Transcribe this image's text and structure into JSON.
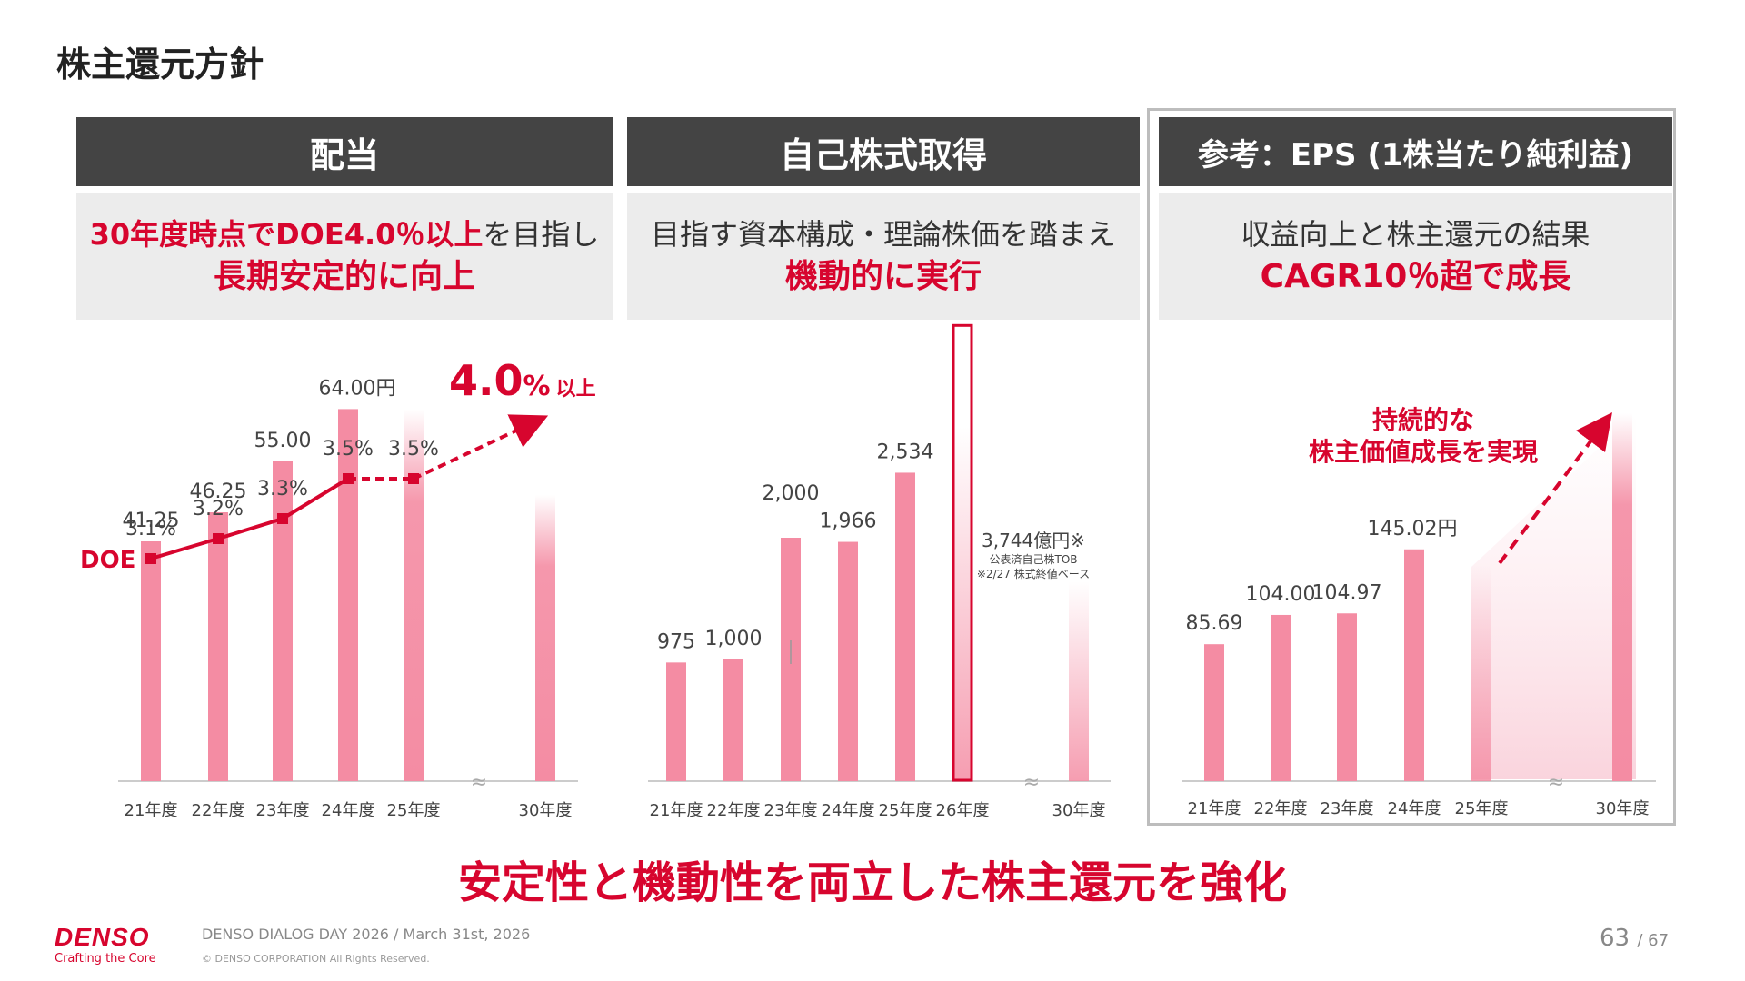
{
  "page_title": "株主還元方針",
  "panels": [
    {
      "header": "配当",
      "sub_line1_red": "30年度時点でDOE4.0％以上",
      "sub_line1_rest": "を目指し",
      "sub_line2": "長期安定的に向上"
    },
    {
      "header": "自己株式取得",
      "sub_line1": "目指す資本構成・理論株価を踏まえ",
      "sub_line2": "機動的に実行"
    },
    {
      "header": "参考：EPS (1株当たり純利益)",
      "sub_line1": "収益向上と株主還元の結果",
      "sub_line2": "CAGR10％超で成長"
    }
  ],
  "chart_data": [
    {
      "type": "bar",
      "title": "",
      "categories": [
        "21年度",
        "22年度",
        "23年度",
        "24年度",
        "25年度",
        "30年度"
      ],
      "series": [
        {
          "values": [
            41.25,
            46.25,
            55.0,
            64.0,
            64.0,
            null
          ]
        }
      ],
      "data_labels": [
        "41.25",
        "46.25",
        "55.00",
        "64.00円",
        "",
        ""
      ],
      "line": {
        "name": "DOE",
        "values": [
          3.1,
          3.2,
          3.3,
          3.5,
          3.5
        ],
        "labels": [
          "3.1%",
          "3.2%",
          "3.3%",
          "3.5%",
          "3.5%"
        ],
        "target": {
          "value": "4.0",
          "unit": "%",
          "suffix": "以上"
        }
      },
      "axis_break": "≈",
      "color": "#f48ca3",
      "accent": "#d7052e"
    },
    {
      "type": "bar",
      "title": "",
      "categories": [
        "21年度",
        "22年度",
        "23年度",
        "24年度",
        "25年度",
        "26年度",
        "30年度"
      ],
      "series": [
        {
          "values": [
            975,
            1000,
            2000,
            1966,
            2534,
            3744,
            null
          ]
        }
      ],
      "data_labels": [
        "975",
        "1,000",
        "2,000",
        "1,966",
        "2,534",
        "",
        ""
      ],
      "annotation": {
        "line1": "3,744億円※",
        "line2": "公表済自己株TOB",
        "line3": "※2/27 株式終値ベース"
      },
      "axis_break": "≈",
      "color": "#f48ca3",
      "accent": "#d7052e"
    },
    {
      "type": "bar",
      "title": "",
      "categories": [
        "21年度",
        "22年度",
        "23年度",
        "24年度",
        "25年度",
        "30年度"
      ],
      "series": [
        {
          "values": [
            85.69,
            104.0,
            104.97,
            145.02,
            null,
            null
          ]
        }
      ],
      "data_labels": [
        "85.69",
        "104.00",
        "104.97",
        "145.02円",
        "",
        ""
      ],
      "annotation": {
        "line1": "持続的な",
        "line2": "株主価値成長を実現"
      },
      "axis_break": "≈",
      "color": "#f48ca3",
      "accent": "#d7052e"
    }
  ],
  "slogan": "安定性と機動性を両立した株主還元を強化",
  "footer": {
    "logo": "DENSO",
    "tagline": "Crafting the Core",
    "event": "DENSO DIALOG DAY 2026 / March 31st, 2026",
    "copyright": "© DENSO CORPORATION All Rights Reserved.",
    "page": "63",
    "total": "/ 67"
  }
}
